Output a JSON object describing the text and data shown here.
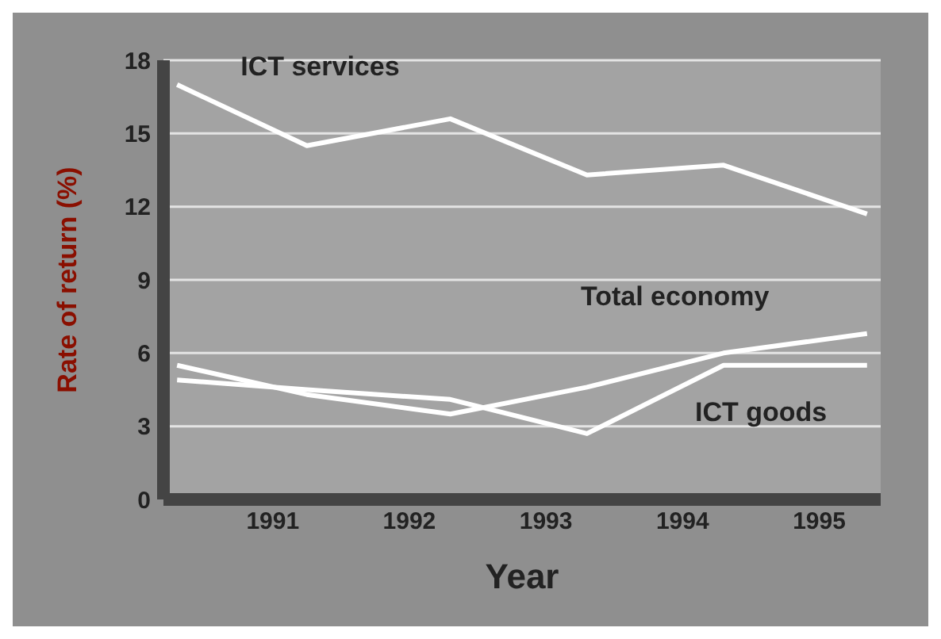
{
  "chart_data": {
    "type": "line",
    "xlabel": "Year",
    "ylabel": "Rate of return (%)",
    "x": [
      1990.3,
      1991.25,
      1992.3,
      1993.3,
      1994.3,
      1995.35
    ],
    "xlim": [
      1990.2,
      1995.45
    ],
    "xticks": [
      1991,
      1992,
      1993,
      1994,
      1995
    ],
    "ylim": [
      0,
      18
    ],
    "yticks": [
      0,
      3,
      6,
      9,
      12,
      15,
      18
    ],
    "grid": "y",
    "marker": "none",
    "line_style": "solid",
    "series": [
      {
        "name": "ICT services",
        "color": "#ffffff",
        "values": [
          17.0,
          14.5,
          15.6,
          13.3,
          13.7,
          11.7
        ]
      },
      {
        "name": "Total economy",
        "color": "#ffffff",
        "values": [
          5.5,
          4.3,
          3.5,
          4.6,
          6.0,
          6.8
        ]
      },
      {
        "name": "ICT goods",
        "color": "#ffffff",
        "values": [
          4.9,
          4.5,
          4.1,
          2.7,
          5.5,
          5.5
        ]
      }
    ]
  }
}
